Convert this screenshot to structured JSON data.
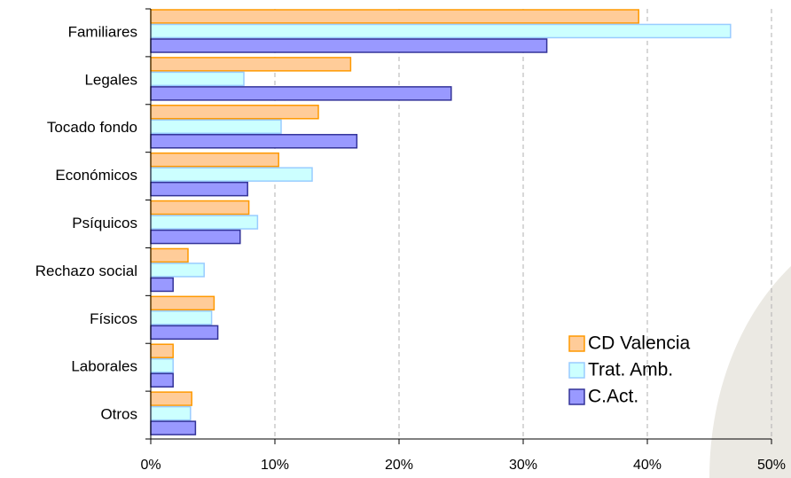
{
  "chart_data": {
    "type": "bar",
    "orientation": "horizontal",
    "categories": [
      "Familiares",
      "Legales",
      "Tocado fondo",
      "Económicos",
      "Psíquicos",
      "Rechazo social",
      "Físicos",
      "Laborales",
      "Otros"
    ],
    "series": [
      {
        "name": "CD Valencia",
        "values": [
          39.3,
          16.1,
          13.5,
          10.3,
          7.9,
          3.0,
          5.1,
          1.8,
          3.3
        ]
      },
      {
        "name": "Trat. Amb.",
        "values": [
          46.7,
          7.5,
          10.5,
          13.0,
          8.6,
          4.3,
          4.9,
          1.8,
          3.2
        ]
      },
      {
        "name": "C.Act.",
        "values": [
          31.9,
          24.2,
          16.6,
          7.8,
          7.2,
          1.8,
          5.4,
          1.8,
          3.6
        ]
      }
    ],
    "xlim": [
      0,
      50
    ],
    "x_ticks": [
      "0%",
      "10%",
      "20%",
      "30%",
      "40%",
      "50%"
    ],
    "grid": "vertical dashed",
    "legend_position": "bottom-right",
    "colors": {
      "CD Valencia": {
        "fill": "#ffcc99",
        "stroke": "#ff9900"
      },
      "Trat. Amb.": {
        "fill": "#ccffff",
        "stroke": "#99ccff"
      },
      "C.Act.": {
        "fill": "#9999ff",
        "stroke": "#333399"
      }
    },
    "background_shape_color": "#ebe9e3"
  }
}
